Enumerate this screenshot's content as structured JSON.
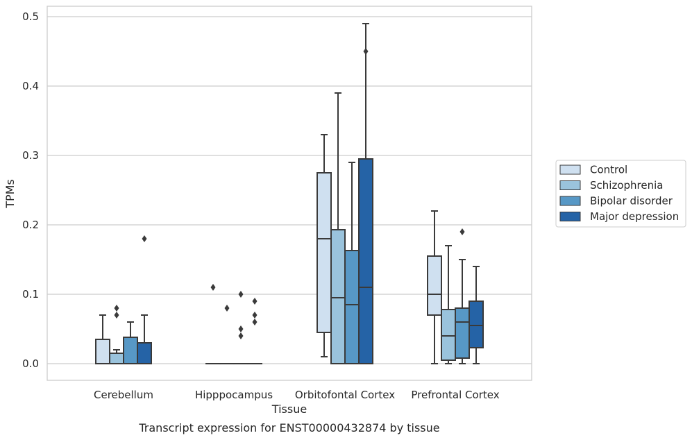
{
  "chart_data": {
    "type": "box",
    "title": "",
    "caption": "Transcript expression for ENST00000432874 by tissue",
    "xlabel": "Tissue",
    "ylabel": "TPMs",
    "ylim": [
      -0.023,
      0.515
    ],
    "yticks": [
      "0.0",
      "0.1",
      "0.2",
      "0.3",
      "0.4",
      "0.5"
    ],
    "grid": true,
    "legend_position": "right",
    "categories": [
      "Cerebellum",
      "Hipppocampus",
      "Orbitofontal Cortex",
      "Prefrontal Cortex"
    ],
    "series": [
      {
        "name": "Control",
        "color": "#cfe0f0",
        "boxes": [
          {
            "q1": 0.0,
            "median": 0.0,
            "q3": 0.035,
            "whisker_low": 0.0,
            "whisker_high": 0.07,
            "outliers": []
          },
          {
            "q1": 0.0,
            "median": 0.0,
            "q3": 0.0,
            "whisker_low": 0.0,
            "whisker_high": 0.0,
            "outliers": [
              0.11
            ]
          },
          {
            "q1": 0.045,
            "median": 0.18,
            "q3": 0.275,
            "whisker_low": 0.01,
            "whisker_high": 0.33,
            "outliers": []
          },
          {
            "q1": 0.07,
            "median": 0.1,
            "q3": 0.155,
            "whisker_low": 0.0,
            "whisker_high": 0.22,
            "outliers": []
          }
        ]
      },
      {
        "name": "Schizophrenia",
        "color": "#9ac3dc",
        "boxes": [
          {
            "q1": 0.0,
            "median": 0.0,
            "q3": 0.015,
            "whisker_low": 0.0,
            "whisker_high": 0.02,
            "outliers": [
              0.07,
              0.08
            ]
          },
          {
            "q1": 0.0,
            "median": 0.0,
            "q3": 0.0,
            "whisker_low": 0.0,
            "whisker_high": 0.0,
            "outliers": [
              0.08
            ]
          },
          {
            "q1": 0.0,
            "median": 0.095,
            "q3": 0.193,
            "whisker_low": 0.0,
            "whisker_high": 0.39,
            "outliers": []
          },
          {
            "q1": 0.005,
            "median": 0.04,
            "q3": 0.078,
            "whisker_low": 0.0,
            "whisker_high": 0.17,
            "outliers": []
          }
        ]
      },
      {
        "name": "Bipolar disorder",
        "color": "#5798c6",
        "boxes": [
          {
            "q1": 0.0,
            "median": 0.0,
            "q3": 0.038,
            "whisker_low": 0.0,
            "whisker_high": 0.06,
            "outliers": []
          },
          {
            "q1": 0.0,
            "median": 0.0,
            "q3": 0.0,
            "whisker_low": 0.0,
            "whisker_high": 0.0,
            "outliers": [
              0.04,
              0.05,
              0.1
            ]
          },
          {
            "q1": 0.0,
            "median": 0.085,
            "q3": 0.163,
            "whisker_low": 0.0,
            "whisker_high": 0.29,
            "outliers": []
          },
          {
            "q1": 0.008,
            "median": 0.06,
            "q3": 0.08,
            "whisker_low": 0.0,
            "whisker_high": 0.15,
            "outliers": [
              0.19
            ]
          }
        ]
      },
      {
        "name": "Major depression",
        "color": "#2563a6",
        "boxes": [
          {
            "q1": 0.0,
            "median": 0.0,
            "q3": 0.03,
            "whisker_low": 0.0,
            "whisker_high": 0.07,
            "outliers": [
              0.18
            ]
          },
          {
            "q1": 0.0,
            "median": 0.0,
            "q3": 0.0,
            "whisker_low": 0.0,
            "whisker_high": 0.0,
            "outliers": [
              0.06,
              0.07,
              0.09
            ]
          },
          {
            "q1": 0.0,
            "median": 0.11,
            "q3": 0.295,
            "whisker_low": 0.0,
            "whisker_high": 0.49,
            "outliers": [
              0.45
            ]
          },
          {
            "q1": 0.023,
            "median": 0.055,
            "q3": 0.09,
            "whisker_low": 0.0,
            "whisker_high": 0.14,
            "outliers": []
          }
        ]
      }
    ]
  }
}
